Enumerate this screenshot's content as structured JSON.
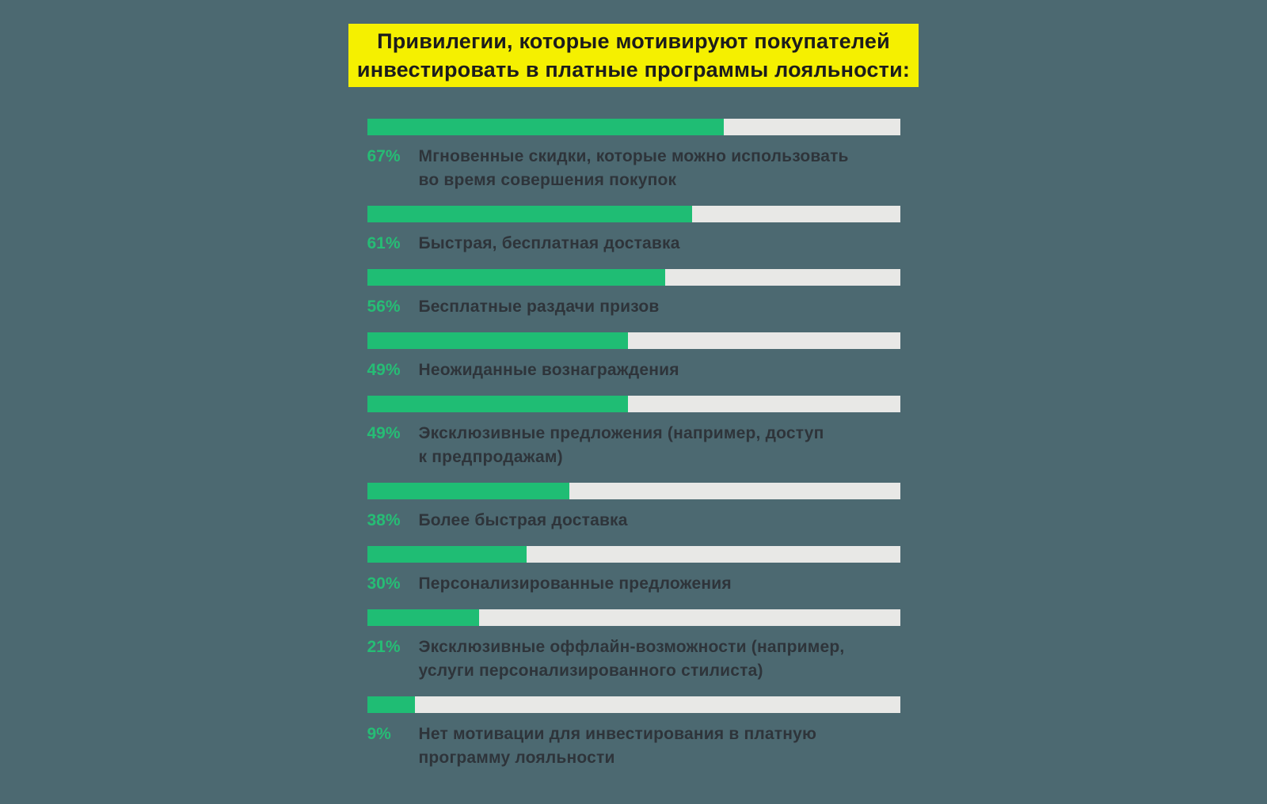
{
  "title": {
    "text": "Привилегии, которые мотивируют покупателей\nинвестировать в платные программы лояльности:"
  },
  "colors": {
    "background": "#4c6971",
    "bar_green": "#1fbd74",
    "bar_track": "#e8e8e6",
    "title_bg": "#f5f000",
    "title_text": "#1c1c1c",
    "label_text": "#2e343a",
    "pct_text": "#26bd75"
  },
  "chart_data": {
    "type": "bar",
    "orientation": "horizontal",
    "unit": "%",
    "xlim": [
      0,
      100
    ],
    "grid": false,
    "legend": false,
    "title": "Привилегии, которые мотивируют покупателей инвестировать в платные программы лояльности:",
    "categories": [
      "Мгновенные скидки, которые можно использовать во время совершения покупок",
      "Быстрая, бесплатная доставка",
      "Бесплатные раздачи призов",
      "Неожиданные вознаграждения",
      "Эксклюзивные предложения (например, доступ к предпродажам)",
      "Более быстрая доставка",
      "Персонализированные предложения",
      "Эксклюзивные оффлайн-возможности (например, услуги персонализированного стилиста)",
      "Нет мотивации для инвестирования в платную программу лояльности"
    ],
    "values": [
      67,
      61,
      56,
      49,
      49,
      38,
      30,
      21,
      9
    ],
    "items": [
      {
        "pct": "67%",
        "value": 67,
        "label": "Мгновенные скидки, которые можно использовать\nво время совершения покупок"
      },
      {
        "pct": "61%",
        "value": 61,
        "label": "Быстрая, бесплатная доставка"
      },
      {
        "pct": "56%",
        "value": 56,
        "label": "Бесплатные раздачи призов"
      },
      {
        "pct": "49%",
        "value": 49,
        "label": "Неожиданные вознаграждения"
      },
      {
        "pct": "49%",
        "value": 49,
        "label": "Эксклюзивные предложения (например, доступ\nк предпродажам)"
      },
      {
        "pct": "38%",
        "value": 38,
        "label": "Более быстрая доставка"
      },
      {
        "pct": "30%",
        "value": 30,
        "label": "Персонализированные предложения"
      },
      {
        "pct": "21%",
        "value": 21,
        "label": "Эксклюзивные оффлайн-возможности (например,\nуслуги персонализированного стилиста)"
      },
      {
        "pct": "9%",
        "value": 9,
        "label": "Нет мотивации для инвестирования в платную\nпрограмму лояльности"
      }
    ]
  }
}
